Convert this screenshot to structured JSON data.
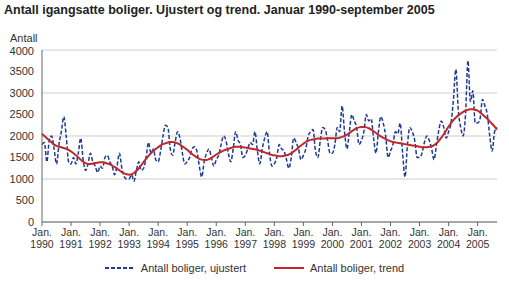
{
  "chart_data": {
    "type": "line",
    "title": "Antall igangsatte boliger. Ujustert og trend. Januar 1990-september 2005",
    "y_label": "Antall",
    "categories": [
      "Jan. 1990",
      null,
      null,
      null,
      null,
      null,
      null,
      null,
      null,
      null,
      null,
      null,
      "Jan. 1991",
      null,
      null,
      null,
      null,
      null,
      null,
      null,
      null,
      null,
      null,
      null,
      "Jan. 1992",
      null,
      null,
      null,
      null,
      null,
      null,
      null,
      null,
      null,
      null,
      null,
      "Jan. 1993",
      null,
      null,
      null,
      null,
      null,
      null,
      null,
      null,
      null,
      null,
      null,
      "Jan. 1994",
      null,
      null,
      null,
      null,
      null,
      null,
      null,
      null,
      null,
      null,
      null,
      "Jan. 1995",
      null,
      null,
      null,
      null,
      null,
      null,
      null,
      null,
      null,
      null,
      null,
      "Jan. 1996",
      null,
      null,
      null,
      null,
      null,
      null,
      null,
      null,
      null,
      null,
      null,
      "Jan. 1997",
      null,
      null,
      null,
      null,
      null,
      null,
      null,
      null,
      null,
      null,
      null,
      "Jan. 1998",
      null,
      null,
      null,
      null,
      null,
      null,
      null,
      null,
      null,
      null,
      null,
      "Jan. 1999",
      null,
      null,
      null,
      null,
      null,
      null,
      null,
      null,
      null,
      null,
      null,
      "Jan. 2000",
      null,
      null,
      null,
      null,
      null,
      null,
      null,
      null,
      null,
      null,
      null,
      "Jan. 2001",
      null,
      null,
      null,
      null,
      null,
      null,
      null,
      null,
      null,
      null,
      null,
      "Jan. 2002",
      null,
      null,
      null,
      null,
      null,
      null,
      null,
      null,
      null,
      null,
      null,
      "Jan. 2003",
      null,
      null,
      null,
      null,
      null,
      null,
      null,
      null,
      null,
      null,
      null,
      "Jan. 2004",
      null,
      null,
      null,
      null,
      null,
      null,
      null,
      null,
      null,
      null,
      null,
      "Jan. 2005",
      null,
      null,
      null,
      null,
      null,
      null,
      null,
      null
    ],
    "series": [
      {
        "name": "Antall boliger, ujustert",
        "color": "#1f3a93",
        "line_style": "dashed",
        "values": [
          1800,
          1850,
          1400,
          1900,
          2000,
          1700,
          1350,
          1800,
          2100,
          2450,
          2000,
          1400,
          1350,
          1500,
          1350,
          1600,
          1950,
          1450,
          1200,
          1350,
          1600,
          1400,
          1300,
          1150,
          1300,
          1250,
          1500,
          1550,
          1400,
          1300,
          1100,
          1300,
          1600,
          1250,
          1050,
          1000,
          1000,
          1100,
          950,
          1200,
          1400,
          1200,
          1250,
          1500,
          1850,
          1600,
          1700,
          1450,
          1400,
          1650,
          2000,
          2250,
          2200,
          1700,
          1550,
          1850,
          2100,
          1950,
          1600,
          1350,
          1400,
          1500,
          1700,
          1750,
          1650,
          1300,
          1050,
          1400,
          1600,
          1700,
          1500,
          1300,
          1450,
          1550,
          1800,
          2000,
          1900,
          1600,
          1400,
          1700,
          2100,
          1900,
          1800,
          1500,
          1550,
          1700,
          1850,
          1800,
          2100,
          1650,
          1350,
          1700,
          1950,
          2100,
          1600,
          1300,
          1350,
          1500,
          1800,
          1700,
          1650,
          1450,
          1250,
          1500,
          1950,
          1850,
          1700,
          1450,
          1550,
          1700,
          2000,
          2100,
          2150,
          1650,
          1500,
          1900,
          2200,
          2150,
          1900,
          1600,
          1600,
          1800,
          2200,
          2100,
          2700,
          2100,
          1700,
          2100,
          2500,
          2350,
          2200,
          1800,
          1900,
          2100,
          2500,
          2350,
          2400,
          1950,
          1600,
          2100,
          2450,
          2300,
          2000,
          1500,
          1650,
          1800,
          2100,
          2050,
          2300,
          1600,
          1050,
          1800,
          2200,
          2100,
          1900,
          1500,
          1500,
          1600,
          1850,
          2000,
          1900,
          1700,
          1450,
          1800,
          2150,
          2350,
          2200,
          1950,
          2100,
          2300,
          2850,
          3550,
          2600,
          2200,
          2000,
          2500,
          3750,
          2800,
          3050,
          2300,
          2300,
          2400,
          2850,
          2700,
          2500,
          2000,
          1650,
          2100,
          2200
        ]
      },
      {
        "name": "Antall boliger, trend",
        "color": "#c0282d",
        "line_style": "solid",
        "values": [
          2050,
          2000,
          1950,
          1900,
          1850,
          1800,
          1770,
          1750,
          1740,
          1720,
          1700,
          1680,
          1640,
          1600,
          1550,
          1500,
          1450,
          1400,
          1370,
          1350,
          1350,
          1360,
          1370,
          1380,
          1390,
          1390,
          1380,
          1360,
          1340,
          1310,
          1280,
          1240,
          1200,
          1160,
          1130,
          1110,
          1100,
          1110,
          1140,
          1190,
          1250,
          1320,
          1400,
          1470,
          1540,
          1600,
          1650,
          1700,
          1740,
          1780,
          1810,
          1830,
          1850,
          1860,
          1860,
          1850,
          1830,
          1800,
          1760,
          1720,
          1680,
          1630,
          1580,
          1540,
          1500,
          1470,
          1450,
          1440,
          1440,
          1460,
          1490,
          1530,
          1570,
          1600,
          1630,
          1660,
          1680,
          1700,
          1720,
          1740,
          1750,
          1750,
          1750,
          1740,
          1730,
          1720,
          1710,
          1700,
          1690,
          1680,
          1660,
          1640,
          1620,
          1600,
          1580,
          1560,
          1550,
          1540,
          1530,
          1530,
          1540,
          1550,
          1570,
          1600,
          1640,
          1680,
          1730,
          1780,
          1820,
          1860,
          1890,
          1910,
          1920,
          1930,
          1940,
          1940,
          1940,
          1940,
          1950,
          1950,
          1950,
          1950,
          1950,
          1960,
          1980,
          2000,
          2030,
          2070,
          2110,
          2150,
          2180,
          2200,
          2210,
          2210,
          2200,
          2180,
          2150,
          2110,
          2070,
          2030,
          1990,
          1960,
          1930,
          1900,
          1880,
          1860,
          1850,
          1840,
          1830,
          1820,
          1810,
          1800,
          1790,
          1780,
          1770,
          1760,
          1750,
          1740,
          1740,
          1740,
          1750,
          1760,
          1790,
          1830,
          1890,
          1960,
          2040,
          2130,
          2220,
          2300,
          2370,
          2430,
          2480,
          2520,
          2560,
          2590,
          2610,
          2620,
          2620,
          2610,
          2590,
          2550,
          2500,
          2450,
          2400,
          2340,
          2280,
          2220,
          2150
        ]
      }
    ],
    "ylim": [
      0,
      4000
    ],
    "yticks": [
      0,
      500,
      1000,
      1500,
      2000,
      2500,
      3000,
      3500,
      4000
    ],
    "grid": true,
    "legend": "bottom"
  }
}
